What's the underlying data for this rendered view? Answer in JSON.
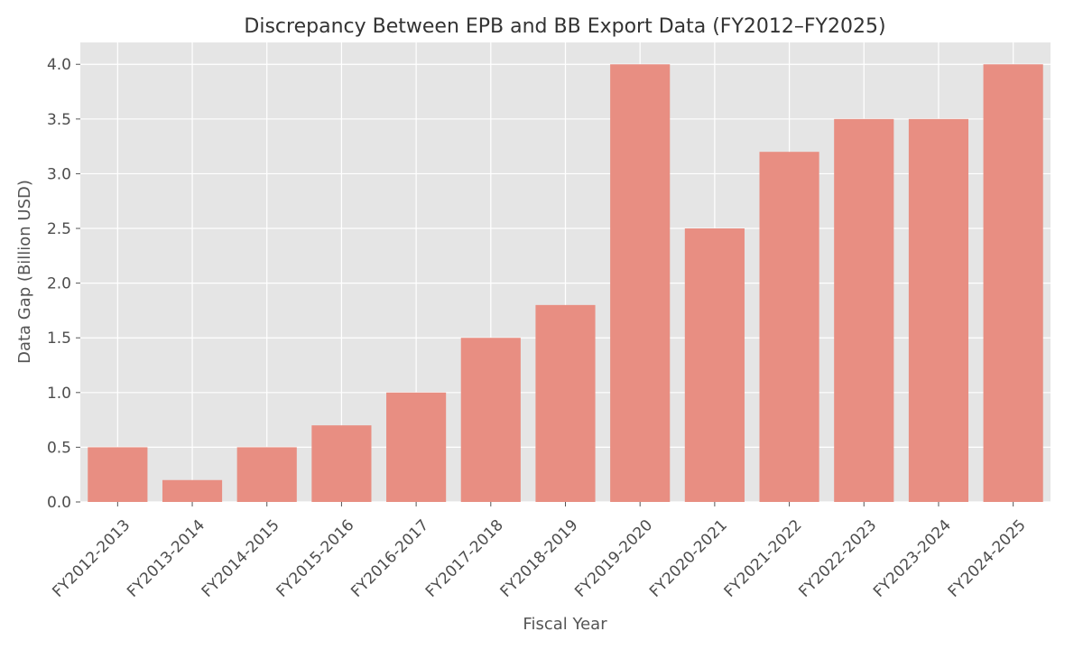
{
  "chart_data": {
    "type": "bar",
    "title": "Discrepancy Between EPB and BB Export Data (FY2012–FY2025)",
    "xlabel": "Fiscal Year",
    "ylabel": "Data Gap (Billion USD)",
    "categories": [
      "FY2012-2013",
      "FY2013-2014",
      "FY2014-2015",
      "FY2015-2016",
      "FY2016-2017",
      "FY2017-2018",
      "FY2018-2019",
      "FY2019-2020",
      "FY2020-2021",
      "FY2021-2022",
      "FY2022-2023",
      "FY2023-2024",
      "FY2024-2025"
    ],
    "values": [
      0.5,
      0.2,
      0.5,
      0.7,
      1.0,
      1.5,
      1.8,
      4.0,
      2.5,
      3.2,
      3.5,
      3.5,
      4.0
    ],
    "ylim": [
      0,
      4.2
    ],
    "yticks": [
      "0.0",
      "0.5",
      "1.0",
      "1.5",
      "2.0",
      "2.5",
      "3.0",
      "3.5",
      "4.0"
    ],
    "grid": true,
    "colors": {
      "bar": "#e88e82",
      "plot_background": "#e5e5e5",
      "grid": "#ffffff"
    }
  }
}
